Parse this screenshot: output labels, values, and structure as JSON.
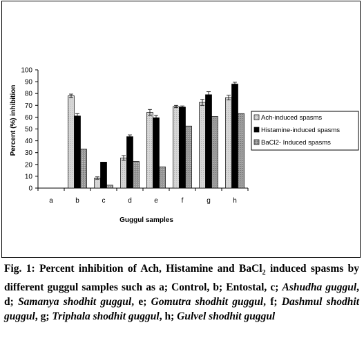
{
  "chart_data": {
    "type": "bar",
    "title": "",
    "xlabel": "Guggul samples",
    "ylabel": "Percent (%) inhibition",
    "categories": [
      "a",
      "b",
      "c",
      "d",
      "e",
      "f",
      "g",
      "h"
    ],
    "ylim": [
      0,
      100
    ],
    "yticks": [
      0,
      10,
      20,
      30,
      40,
      50,
      60,
      70,
      80,
      90,
      100
    ],
    "grid": false,
    "legend_position": "right",
    "series": [
      {
        "name": "Ach-induced spasms",
        "values": [
          0,
          78,
          8.5,
          25.5,
          64,
          69,
          72.5,
          76.5
        ],
        "errors": [
          0,
          1.5,
          1,
          2,
          2.5,
          1,
          2.5,
          2
        ],
        "color": "#c8c8c8"
      },
      {
        "name": "Histamine-induced spasms",
        "values": [
          0,
          61,
          22,
          43.5,
          59.5,
          68.5,
          79,
          88
        ],
        "errors": [
          0,
          2,
          0,
          1.5,
          2,
          1,
          2.5,
          1.5
        ],
        "color": "#000000"
      },
      {
        "name": "BaCl2- Induced spasms",
        "values": [
          0,
          33,
          2.5,
          22.5,
          18,
          52.5,
          60.5,
          63
        ],
        "errors": [
          0,
          0,
          0,
          0,
          0,
          0,
          0,
          0
        ],
        "color": "#8c8c8c"
      }
    ]
  },
  "caption": {
    "fig_label": "Fig. 1:",
    "text_1": "Percent inhibition of Ach, Histamine and BaCl",
    "sub_2": "2",
    "text_2": "induced spasms by different guggul samples such as a; Control, b; Entostal, c;",
    "item_c": "Ashudha guggul",
    "sep_d": ", d;",
    "item_d": "Samanya shodhit guggul",
    "sep_e": ", e;",
    "item_e": "Gomutra shodhit guggul",
    "sep_f": ", f;",
    "item_f": "Dashmul shodhit guggul",
    "sep_g": ", g;",
    "item_g": "Triphala shodhit guggul",
    "sep_h": ", h;",
    "item_h": "Gulvel shodhit guggul"
  }
}
